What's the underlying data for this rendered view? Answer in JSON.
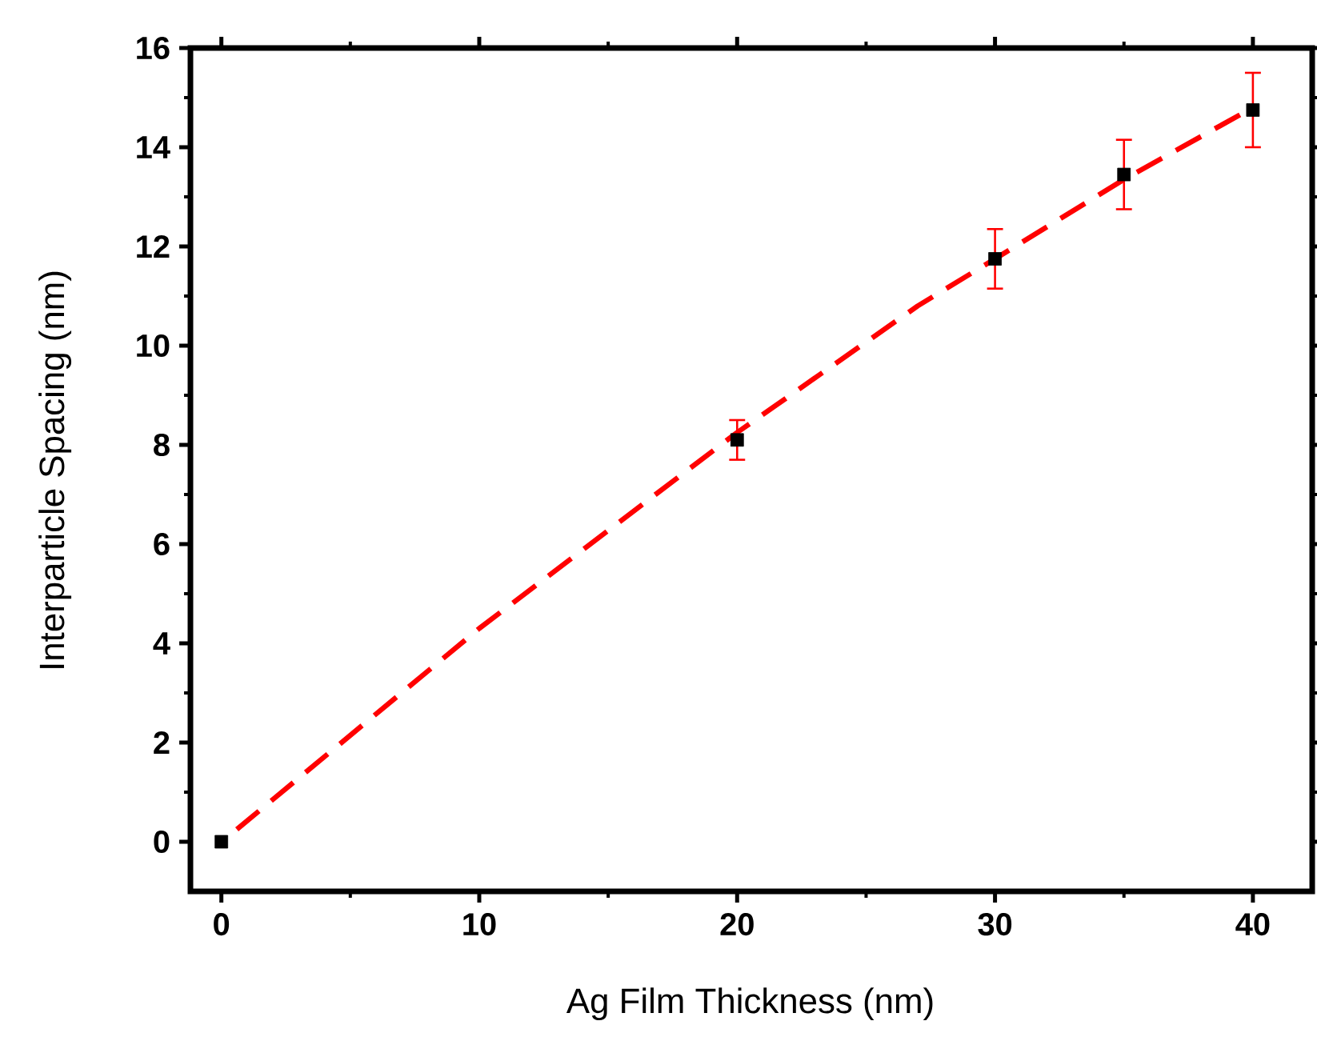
{
  "chart_data": {
    "type": "scatter",
    "xlabel": "Ag Film Thickness (nm)",
    "ylabel": "Interparticle Spacing (nm)",
    "xlim": [
      -1.2,
      42.3
    ],
    "ylim": [
      -1,
      16
    ],
    "xticks": [
      0,
      10,
      20,
      30,
      40
    ],
    "yticks": [
      0,
      2,
      4,
      6,
      8,
      10,
      12,
      14,
      16
    ],
    "grid": false,
    "series": [
      {
        "color": "#000000",
        "marker": "square",
        "x": [
          0,
          20,
          30,
          35,
          40
        ],
        "values": [
          0,
          8.1,
          11.75,
          13.45,
          14.75
        ],
        "errors": [
          null,
          0.4,
          0.6,
          0.7,
          0.75
        ]
      },
      {
        "type": "line",
        "color": "#ff0000",
        "marker": "none",
        "line_style": "dashed",
        "x": [
          0.6,
          10,
          20,
          27,
          30,
          35,
          40
        ],
        "values": [
          0.25,
          4.3,
          8.25,
          10.8,
          11.75,
          13.35,
          14.8
        ]
      }
    ]
  }
}
